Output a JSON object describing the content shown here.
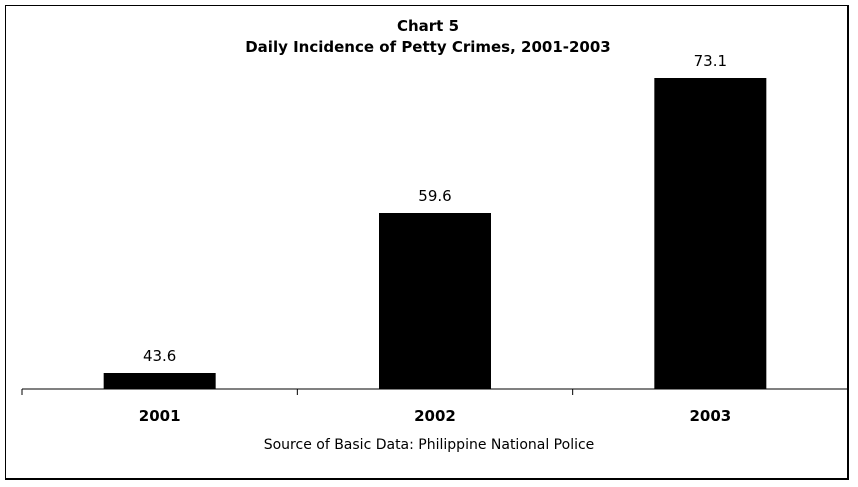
{
  "chart_data": {
    "type": "bar",
    "title": "Chart 5",
    "subtitle": "Daily Incidence of Petty Crimes, 2001-2003",
    "categories": [
      "2001",
      "2002",
      "2003"
    ],
    "values": [
      43.6,
      59.6,
      73.1
    ],
    "data_labels": [
      "43.6",
      "59.6",
      "73.1"
    ],
    "ylim": [
      42,
      76
    ],
    "grid": false,
    "legend": "none",
    "bar_color": "#000000",
    "source": "Source of Basic Data: Philippine National Police"
  }
}
